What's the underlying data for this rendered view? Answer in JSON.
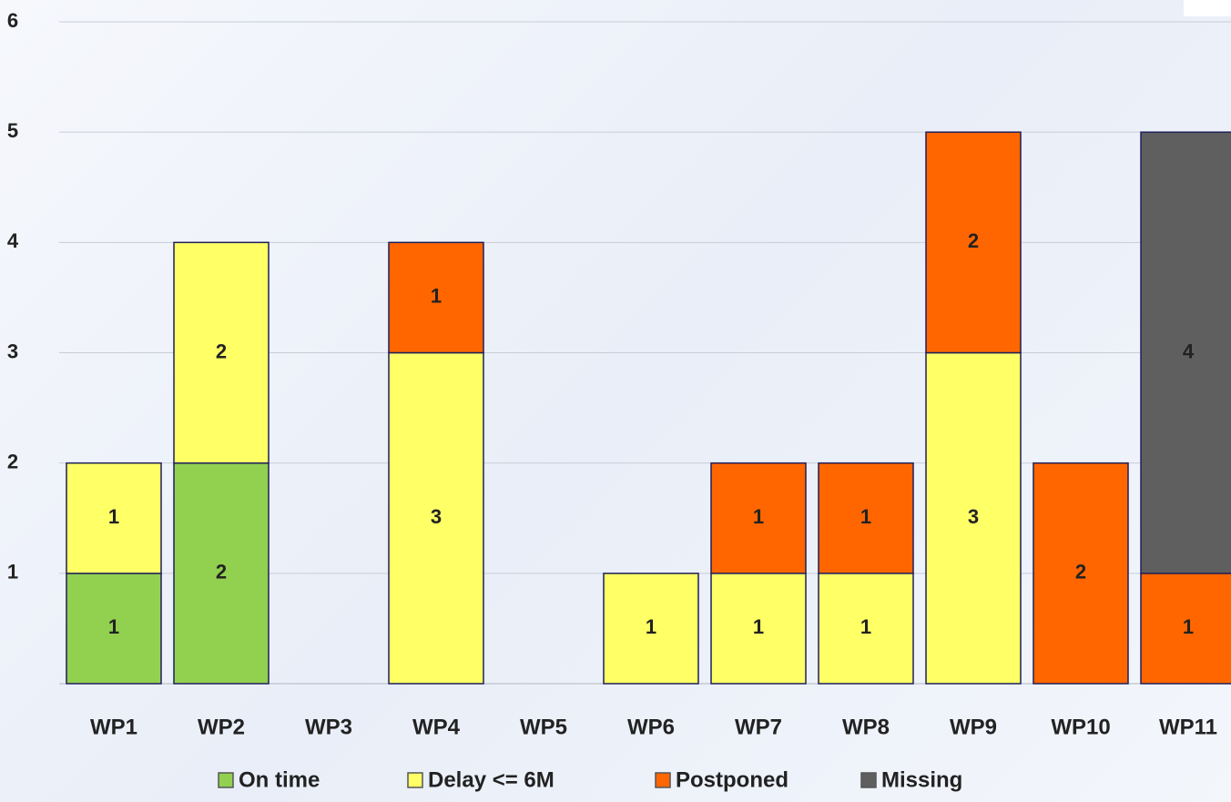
{
  "chart_data": {
    "type": "stacked_bar",
    "categories": [
      "WP1",
      "WP2",
      "WP3",
      "WP4",
      "WP5",
      "WP6",
      "WP7",
      "WP8",
      "WP9",
      "WP10",
      "WP11"
    ],
    "series": [
      {
        "name": "On time",
        "color": "#92d050",
        "values": [
          1,
          2,
          0,
          0,
          0,
          0,
          0,
          0,
          0,
          0,
          0
        ]
      },
      {
        "name": "Delay <= 6M",
        "color": "#ffff66",
        "values": [
          1,
          2,
          0,
          3,
          0,
          1,
          1,
          1,
          3,
          0,
          0
        ]
      },
      {
        "name": "Postponed",
        "color": "#ff6600",
        "values": [
          0,
          0,
          0,
          1,
          0,
          0,
          1,
          1,
          2,
          2,
          1
        ]
      },
      {
        "name": "Missing",
        "color": "#5f5f5f",
        "values": [
          0,
          0,
          0,
          0,
          0,
          0,
          0,
          0,
          0,
          0,
          4
        ]
      }
    ],
    "ylim": [
      0,
      6
    ],
    "yticks": [
      1,
      2,
      3,
      4,
      5,
      6
    ],
    "grid": true,
    "legend": "bottom"
  }
}
